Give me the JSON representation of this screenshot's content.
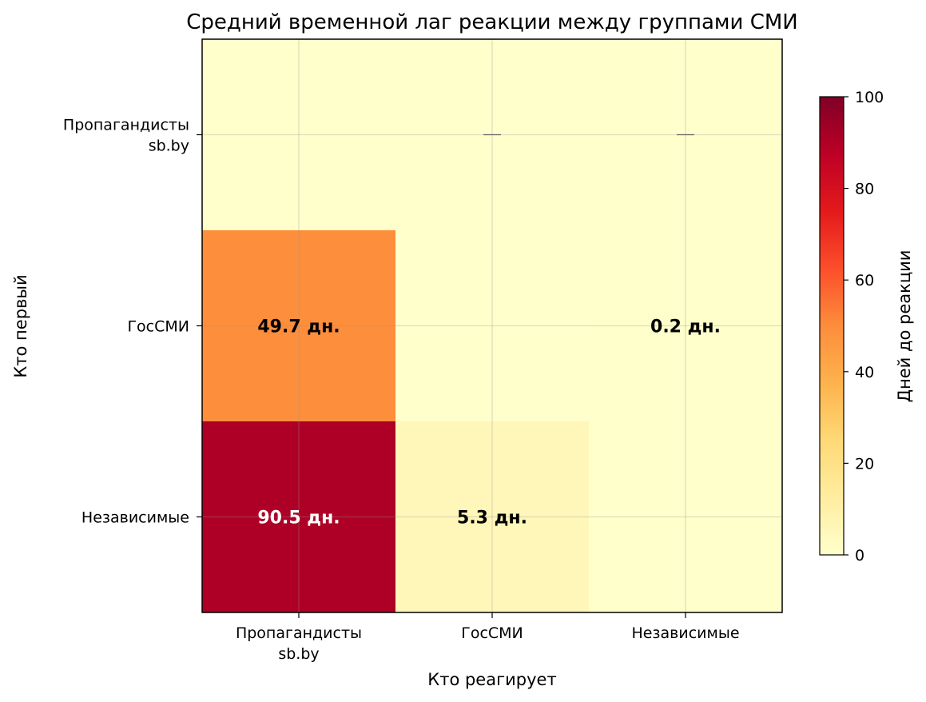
{
  "chart_data": {
    "type": "heatmap",
    "title": "Средний временной лаг реакции между группами СМИ",
    "xlabel": "Кто реагирует",
    "ylabel": "Кто первый",
    "x_categories": [
      [
        "Пропагандисты",
        "sb.by"
      ],
      [
        "ГосСМИ"
      ],
      [
        "Независимые"
      ]
    ],
    "y_categories": [
      [
        "Пропагандисты",
        "sb.by"
      ],
      [
        "ГосСМИ"
      ],
      [
        "Независимые"
      ]
    ],
    "values": [
      [
        0,
        null,
        null
      ],
      [
        49.7,
        0,
        0.2
      ],
      [
        90.5,
        5.3,
        0
      ]
    ],
    "cell_labels": [
      [
        "",
        "—",
        "—"
      ],
      [
        "49.7 дн.",
        "",
        "0.2 дн."
      ],
      [
        "90.5 дн.",
        "5.3 дн.",
        ""
      ]
    ],
    "colorbar": {
      "label": "Дней до реакции",
      "min": 0,
      "max": 100,
      "ticks": [
        "0",
        "20",
        "40",
        "60",
        "80",
        "100"
      ],
      "colormap": "YlOrRd"
    },
    "grid": true
  }
}
